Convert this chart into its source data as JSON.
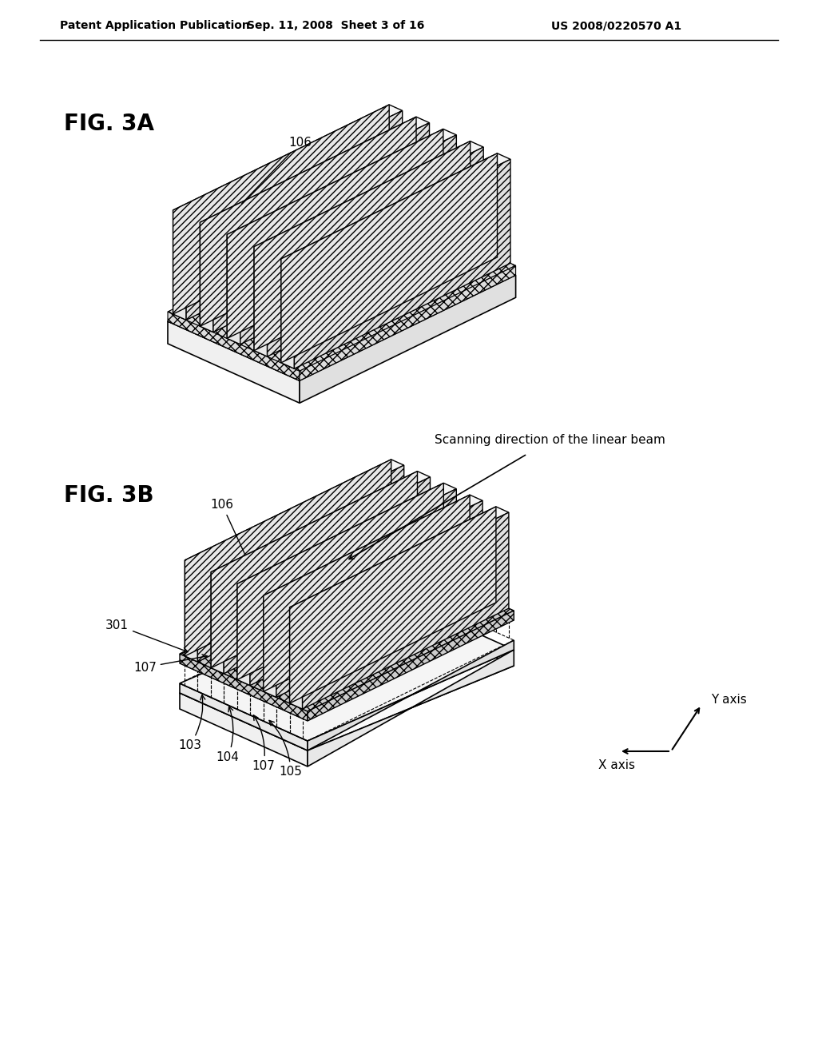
{
  "background_color": "#ffffff",
  "header_left": "Patent Application Publication",
  "header_center": "Sep. 11, 2008  Sheet 3 of 16",
  "header_right": "US 2008/0220570 A1",
  "fig3a_label": "FIG. 3A",
  "fig3b_label": "FIG. 3B",
  "label_106_3a": "106",
  "label_106_3b": "106",
  "label_301": "301",
  "label_107_left": "107",
  "label_103": "103",
  "label_104": "104",
  "label_107_bottom": "107",
  "label_105": "105",
  "scanning_text": "Scanning direction of the linear beam",
  "x_axis_label": "X axis",
  "y_axis_label": "Y axis"
}
